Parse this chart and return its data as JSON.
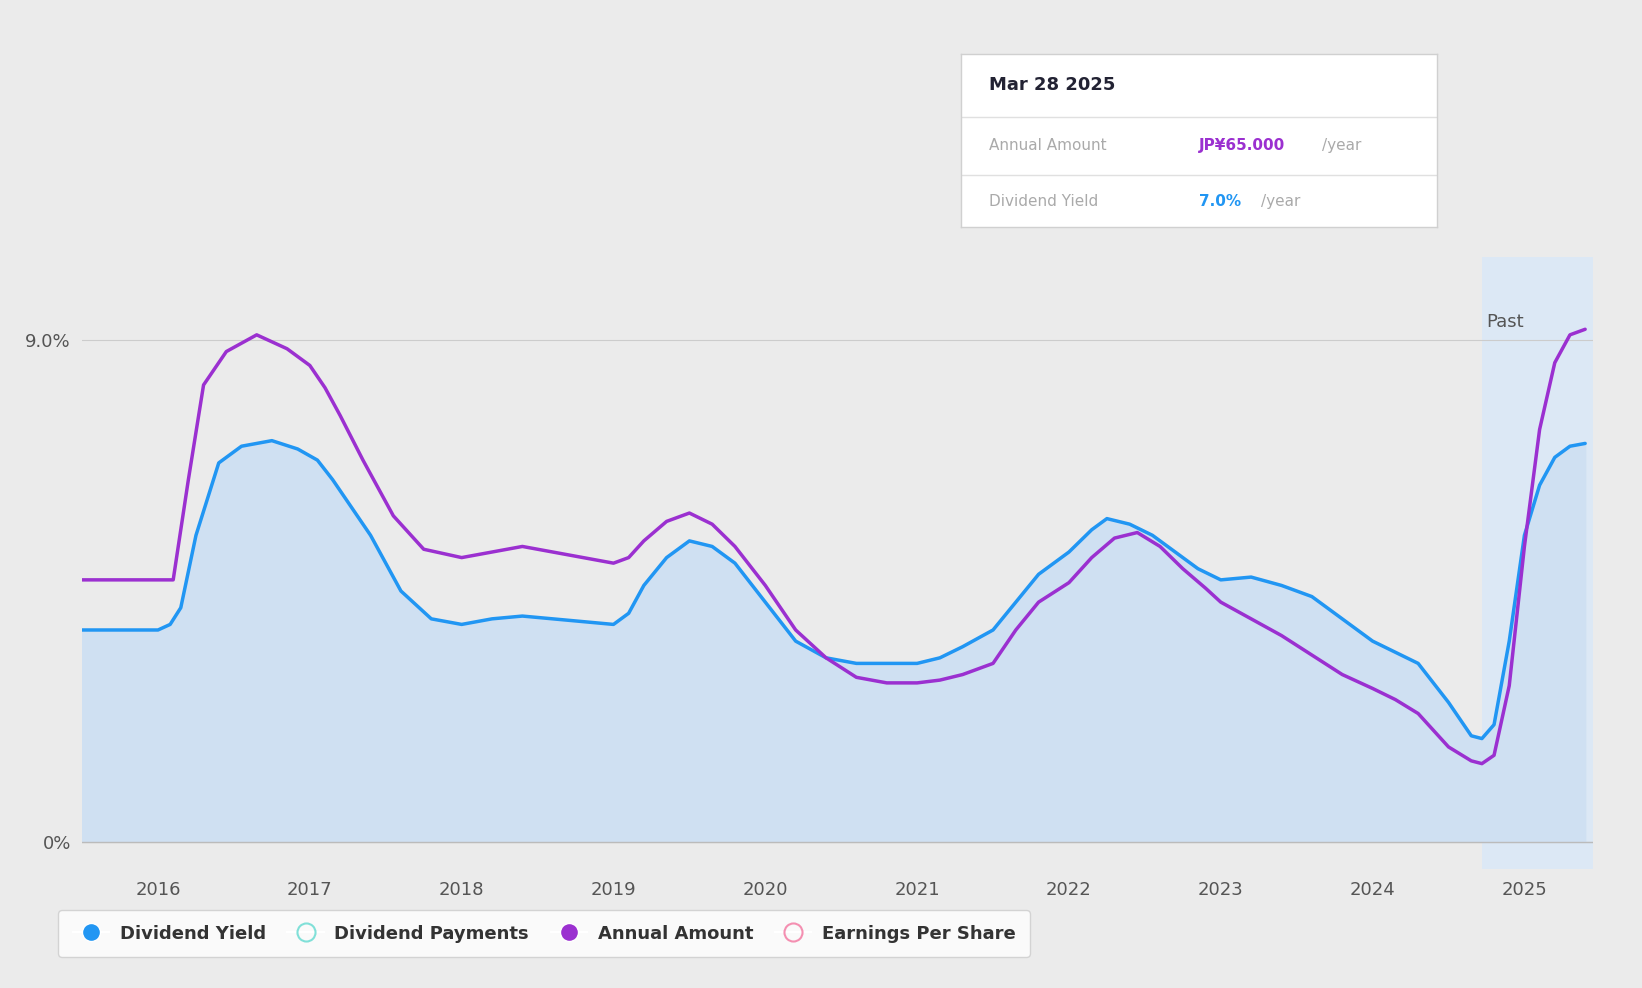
{
  "bg_color": "#ebebeb",
  "plot_bg_color": "#ebebeb",
  "past_shade_color": "#dce8f5",
  "fill_color": "#cfe0f2",
  "yield_line_color": "#2196f3",
  "annual_line_color": "#9b30d0",
  "past_cutoff": 2024.72,
  "x_ticks": [
    2016,
    2017,
    2018,
    2019,
    2020,
    2021,
    2022,
    2023,
    2024,
    2025
  ],
  "ylim": [
    -0.5,
    10.5
  ],
  "xlim": [
    2015.5,
    2025.45
  ],
  "dividend_yield_x": [
    2015.5,
    2015.65,
    2015.85,
    2016.0,
    2016.08,
    2016.15,
    2016.25,
    2016.4,
    2016.55,
    2016.75,
    2016.92,
    2017.05,
    2017.15,
    2017.25,
    2017.4,
    2017.6,
    2017.8,
    2018.0,
    2018.2,
    2018.4,
    2018.6,
    2018.8,
    2019.0,
    2019.1,
    2019.2,
    2019.35,
    2019.5,
    2019.65,
    2019.8,
    2020.0,
    2020.2,
    2020.4,
    2020.6,
    2020.8,
    2021.0,
    2021.15,
    2021.3,
    2021.5,
    2021.65,
    2021.8,
    2022.0,
    2022.15,
    2022.25,
    2022.4,
    2022.55,
    2022.7,
    2022.85,
    2023.0,
    2023.2,
    2023.4,
    2023.6,
    2023.8,
    2024.0,
    2024.15,
    2024.3,
    2024.5,
    2024.65,
    2024.72,
    2024.8,
    2024.9,
    2025.0,
    2025.1,
    2025.2,
    2025.3,
    2025.4
  ],
  "dividend_yield_y": [
    3.8,
    3.8,
    3.8,
    3.8,
    3.9,
    4.2,
    5.5,
    6.8,
    7.1,
    7.2,
    7.05,
    6.85,
    6.5,
    6.1,
    5.5,
    4.5,
    4.0,
    3.9,
    4.0,
    4.05,
    4.0,
    3.95,
    3.9,
    4.1,
    4.6,
    5.1,
    5.4,
    5.3,
    5.0,
    4.3,
    3.6,
    3.3,
    3.2,
    3.2,
    3.2,
    3.3,
    3.5,
    3.8,
    4.3,
    4.8,
    5.2,
    5.6,
    5.8,
    5.7,
    5.5,
    5.2,
    4.9,
    4.7,
    4.75,
    4.6,
    4.4,
    4.0,
    3.6,
    3.4,
    3.2,
    2.5,
    1.9,
    1.85,
    2.1,
    3.6,
    5.5,
    6.4,
    6.9,
    7.1,
    7.15
  ],
  "annual_amount_x": [
    2015.5,
    2015.65,
    2015.85,
    2016.0,
    2016.05,
    2016.1,
    2016.2,
    2016.3,
    2016.45,
    2016.65,
    2016.85,
    2017.0,
    2017.1,
    2017.2,
    2017.35,
    2017.55,
    2017.75,
    2018.0,
    2018.2,
    2018.4,
    2018.6,
    2018.8,
    2019.0,
    2019.1,
    2019.2,
    2019.35,
    2019.5,
    2019.65,
    2019.8,
    2020.0,
    2020.2,
    2020.4,
    2020.6,
    2020.8,
    2021.0,
    2021.15,
    2021.3,
    2021.5,
    2021.65,
    2021.8,
    2022.0,
    2022.15,
    2022.3,
    2022.45,
    2022.6,
    2022.75,
    2022.9,
    2023.0,
    2023.2,
    2023.4,
    2023.6,
    2023.8,
    2024.0,
    2024.15,
    2024.3,
    2024.5,
    2024.65,
    2024.72,
    2024.8,
    2024.9,
    2025.0,
    2025.1,
    2025.2,
    2025.3,
    2025.4
  ],
  "annual_amount_y": [
    4.7,
    4.7,
    4.7,
    4.7,
    4.7,
    4.7,
    6.5,
    8.2,
    8.8,
    9.1,
    8.85,
    8.55,
    8.15,
    7.65,
    6.85,
    5.85,
    5.25,
    5.1,
    5.2,
    5.3,
    5.2,
    5.1,
    5.0,
    5.1,
    5.4,
    5.75,
    5.9,
    5.7,
    5.3,
    4.6,
    3.8,
    3.3,
    2.95,
    2.85,
    2.85,
    2.9,
    3.0,
    3.2,
    3.8,
    4.3,
    4.65,
    5.1,
    5.45,
    5.55,
    5.3,
    4.9,
    4.55,
    4.3,
    4.0,
    3.7,
    3.35,
    3.0,
    2.75,
    2.55,
    2.3,
    1.7,
    1.45,
    1.4,
    1.55,
    2.8,
    5.3,
    7.4,
    8.6,
    9.1,
    9.2
  ]
}
